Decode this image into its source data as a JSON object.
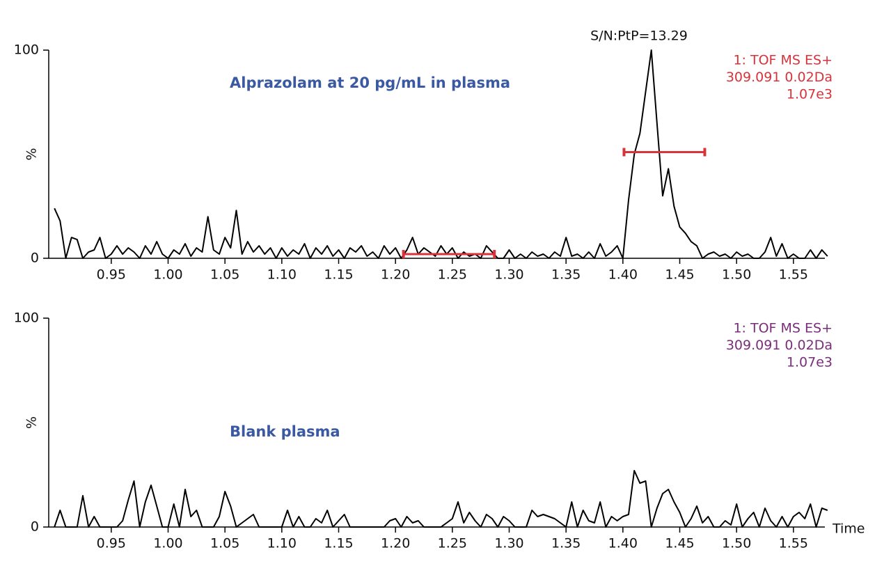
{
  "chart_data": [
    {
      "type": "line",
      "title": "Alprazolam at 20 pg/mL in plasma",
      "annotation": "S/N:PtP=13.29",
      "info": [
        "1: TOF MS ES+",
        "309.091 0.02Da",
        "1.07e3"
      ],
      "info_color": "#d8333a",
      "title_color": "#3b59a3",
      "y_label": "%",
      "color": "#000000",
      "xlim": [
        0.895,
        1.585
      ],
      "ylim": [
        0,
        100
      ],
      "yticks": [
        0,
        100
      ],
      "xticks": [
        0.95,
        {
          "value": 1,
          "label": "1.00"
        },
        1.05,
        {
          "value": 1.1,
          "label": "1.10"
        },
        1.15,
        {
          "value": 1.2,
          "label": "1.20"
        },
        1.25,
        {
          "value": 1.3,
          "label": "1.30"
        },
        1.35,
        {
          "value": 1.4,
          "label": "1.40"
        },
        1.45,
        {
          "value": 1.5,
          "label": "1.50"
        },
        1.55
      ],
      "intervals": [
        {
          "x": [
            1.207,
            1.287
          ],
          "y": 2,
          "color": "#d8333a"
        },
        {
          "x": [
            1.401,
            1.472
          ],
          "y": 51,
          "color": "#d8333a"
        }
      ],
      "x": [
        0.9,
        0.905,
        0.91,
        0.915,
        0.92,
        0.925,
        0.93,
        0.935,
        0.94,
        0.945,
        0.95,
        0.955,
        0.96,
        0.965,
        0.97,
        0.975,
        0.98,
        0.985,
        0.99,
        0.995,
        1,
        1.005,
        1.01,
        1.015,
        1.02,
        1.025,
        1.03,
        1.035,
        1.04,
        1.045,
        1.05,
        1.055,
        1.06,
        1.065,
        1.07,
        1.075,
        1.08,
        1.085,
        1.09,
        1.095,
        1.1,
        1.105,
        1.11,
        1.115,
        1.12,
        1.125,
        1.13,
        1.135,
        1.14,
        1.145,
        1.15,
        1.155,
        1.16,
        1.165,
        1.17,
        1.175,
        1.18,
        1.185,
        1.19,
        1.195,
        1.2,
        1.205,
        1.21,
        1.215,
        1.22,
        1.225,
        1.23,
        1.235,
        1.24,
        1.245,
        1.25,
        1.255,
        1.26,
        1.265,
        1.27,
        1.275,
        1.28,
        1.285,
        1.29,
        1.295,
        1.3,
        1.305,
        1.31,
        1.315,
        1.32,
        1.325,
        1.33,
        1.335,
        1.34,
        1.345,
        1.35,
        1.355,
        1.36,
        1.365,
        1.37,
        1.375,
        1.38,
        1.385,
        1.39,
        1.395,
        1.4,
        1.405,
        1.41,
        1.415,
        1.42,
        1.425,
        1.43,
        1.435,
        1.44,
        1.445,
        1.45,
        1.455,
        1.46,
        1.465,
        1.47,
        1.475,
        1.48,
        1.485,
        1.49,
        1.495,
        1.5,
        1.505,
        1.51,
        1.515,
        1.52,
        1.525,
        1.53,
        1.535,
        1.54,
        1.545,
        1.55,
        1.555,
        1.56,
        1.565,
        1.57,
        1.575,
        1.58
      ],
      "values": [
        24,
        18,
        0,
        10,
        9,
        0,
        3,
        4,
        10,
        0,
        2,
        6,
        2,
        5,
        3,
        0,
        6,
        2,
        8,
        2,
        0,
        4,
        2,
        7,
        1,
        5,
        3,
        20,
        4,
        2,
        10,
        5,
        23,
        2,
        8,
        3,
        6,
        2,
        5,
        0,
        5,
        1,
        4,
        2,
        7,
        0,
        5,
        2,
        6,
        1,
        4,
        0,
        5,
        3,
        6,
        1,
        3,
        0,
        6,
        2,
        5,
        0,
        4,
        10,
        2,
        5,
        3,
        1,
        6,
        2,
        5,
        0,
        3,
        1,
        2,
        0,
        6,
        3,
        0,
        0,
        4,
        0,
        2,
        0,
        3,
        1,
        2,
        0,
        3,
        1,
        10,
        1,
        2,
        0,
        3,
        0,
        7,
        1,
        3,
        6,
        0,
        28,
        50,
        60,
        80,
        100,
        65,
        30,
        43,
        25,
        15,
        12,
        8,
        6,
        0,
        2,
        3,
        1,
        2,
        0,
        3,
        1,
        2,
        0,
        0,
        3,
        10,
        1,
        7,
        0,
        2,
        0,
        0,
        4,
        0,
        4,
        1
      ]
    },
    {
      "type": "line",
      "title": "Blank plasma",
      "info": [
        "1: TOF MS ES+",
        "309.091 0.02Da",
        "1.07e3"
      ],
      "info_color": "#7b2d7b",
      "title_color": "#3b59a3",
      "y_label": "%",
      "x_label": "Time",
      "color": "#000000",
      "xlim": [
        0.895,
        1.585
      ],
      "ylim": [
        0,
        100
      ],
      "yticks": [
        0,
        100
      ],
      "xticks": [
        0.95,
        {
          "value": 1,
          "label": "1.00"
        },
        1.05,
        {
          "value": 1.1,
          "label": "1.10"
        },
        1.15,
        {
          "value": 1.2,
          "label": "1.20"
        },
        1.25,
        {
          "value": 1.3,
          "label": "1.30"
        },
        1.35,
        {
          "value": 1.4,
          "label": "1.40"
        },
        1.45,
        {
          "value": 1.5,
          "label": "1.50"
        },
        1.55
      ],
      "x": [
        0.9,
        0.905,
        0.91,
        0.915,
        0.92,
        0.925,
        0.93,
        0.935,
        0.94,
        0.945,
        0.95,
        0.955,
        0.96,
        0.965,
        0.97,
        0.975,
        0.98,
        0.985,
        0.99,
        0.995,
        1,
        1.005,
        1.01,
        1.015,
        1.02,
        1.025,
        1.03,
        1.035,
        1.04,
        1.045,
        1.05,
        1.055,
        1.06,
        1.065,
        1.07,
        1.075,
        1.08,
        1.085,
        1.09,
        1.095,
        1.1,
        1.105,
        1.11,
        1.115,
        1.12,
        1.125,
        1.13,
        1.135,
        1.14,
        1.145,
        1.15,
        1.155,
        1.16,
        1.165,
        1.17,
        1.175,
        1.18,
        1.185,
        1.19,
        1.195,
        1.2,
        1.205,
        1.21,
        1.215,
        1.22,
        1.225,
        1.23,
        1.235,
        1.24,
        1.245,
        1.25,
        1.255,
        1.26,
        1.265,
        1.27,
        1.275,
        1.28,
        1.285,
        1.29,
        1.295,
        1.3,
        1.305,
        1.31,
        1.315,
        1.32,
        1.325,
        1.33,
        1.335,
        1.34,
        1.345,
        1.35,
        1.355,
        1.36,
        1.365,
        1.37,
        1.375,
        1.38,
        1.385,
        1.39,
        1.395,
        1.4,
        1.405,
        1.41,
        1.415,
        1.42,
        1.425,
        1.43,
        1.435,
        1.44,
        1.445,
        1.45,
        1.455,
        1.46,
        1.465,
        1.47,
        1.475,
        1.48,
        1.485,
        1.49,
        1.495,
        1.5,
        1.505,
        1.51,
        1.515,
        1.52,
        1.525,
        1.53,
        1.535,
        1.54,
        1.545,
        1.55,
        1.555,
        1.56,
        1.565,
        1.57,
        1.575,
        1.58
      ],
      "values": [
        0,
        8,
        0,
        0,
        0,
        15,
        0,
        5,
        0,
        0,
        0,
        0,
        3,
        13,
        22,
        0,
        12,
        20,
        10,
        0,
        0,
        11,
        0,
        18,
        5,
        8,
        0,
        0,
        0,
        5,
        17,
        10,
        0,
        2,
        4,
        6,
        0,
        0,
        0,
        0,
        0,
        8,
        0,
        5,
        0,
        0,
        4,
        2,
        8,
        0,
        3,
        6,
        0,
        0,
        0,
        0,
        0,
        0,
        0,
        3,
        4,
        0,
        5,
        2,
        3,
        0,
        0,
        0,
        0,
        2,
        4,
        12,
        2,
        7,
        3,
        0,
        6,
        4,
        0,
        5,
        3,
        0,
        0,
        0,
        8,
        5,
        6,
        5,
        4,
        2,
        0,
        12,
        0,
        8,
        3,
        2,
        12,
        0,
        5,
        3,
        5,
        6,
        27,
        21,
        22,
        0,
        9,
        16,
        18,
        12,
        7,
        0,
        4,
        10,
        2,
        5,
        0,
        0,
        3,
        1,
        11,
        0,
        4,
        7,
        0,
        9,
        3,
        0,
        5,
        0,
        5,
        7,
        4,
        11,
        0,
        9,
        8
      ]
    }
  ]
}
